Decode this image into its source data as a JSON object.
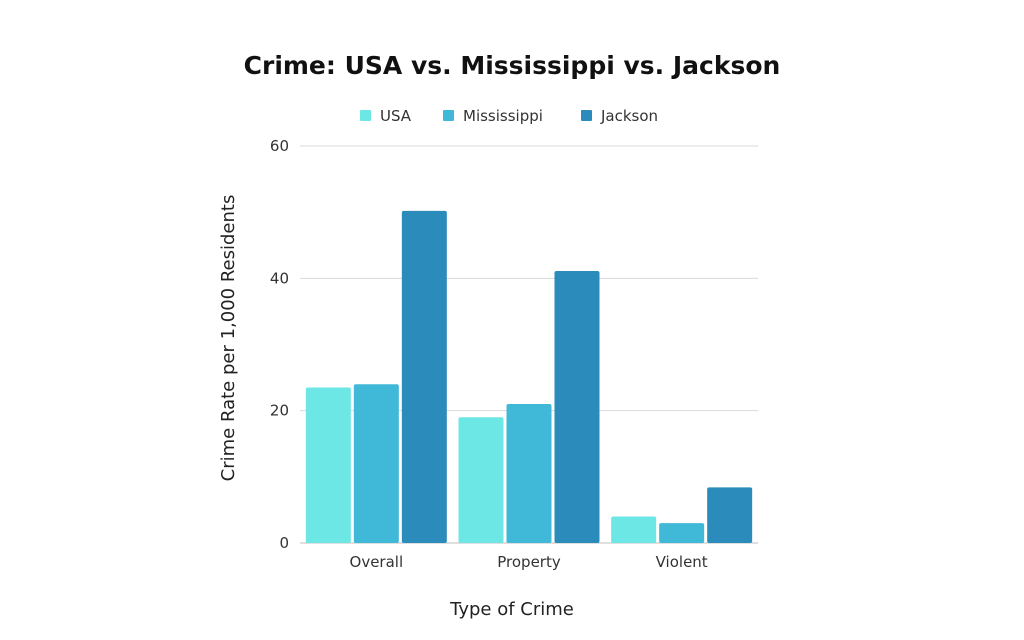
{
  "chart_data": {
    "type": "bar",
    "title": "Crime: USA vs. Mississippi vs. Jackson",
    "xlabel": "Type of Crime",
    "ylabel": "Crime Rate per 1,000 Residents",
    "categories": [
      "Overall",
      "Property",
      "Violent"
    ],
    "series": [
      {
        "name": "USA",
        "color": "#6de6e6",
        "values": [
          23.5,
          19.0,
          4.0
        ]
      },
      {
        "name": "Mississippi",
        "color": "#40b8d8",
        "values": [
          24.0,
          21.0,
          3.0
        ]
      },
      {
        "name": "Jackson",
        "color": "#2b8bbb",
        "values": [
          50.2,
          41.1,
          8.4
        ]
      }
    ],
    "ylim": [
      0,
      60
    ],
    "yticks": [
      0,
      20,
      40,
      60
    ],
    "grid": true,
    "legend_position": "top-center"
  }
}
